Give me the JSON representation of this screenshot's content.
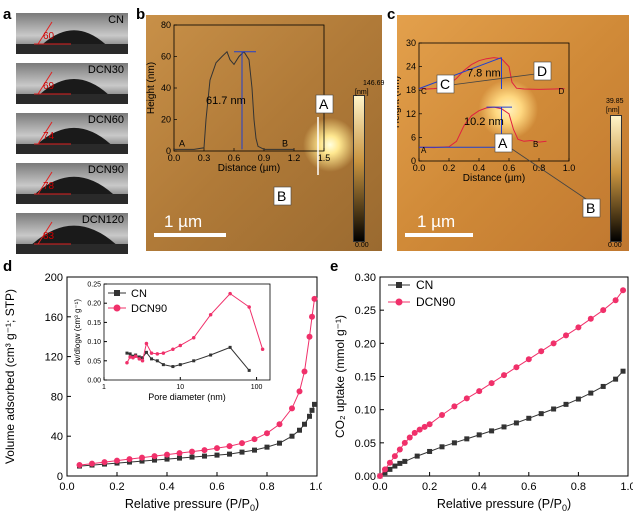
{
  "panel_labels": {
    "a": "a",
    "b": "b",
    "c": "c",
    "d": "d",
    "e": "e"
  },
  "contact_angle": {
    "samples": [
      {
        "name": "CN",
        "angle": "60"
      },
      {
        "name": "DCN30",
        "angle": "69"
      },
      {
        "name": "DCN60",
        "angle": "74"
      },
      {
        "name": "DCN90",
        "angle": "78"
      },
      {
        "name": "DCN120",
        "angle": "83"
      }
    ]
  },
  "afm_b": {
    "scale_label": "1 µm",
    "colorbar_max": "146.69",
    "colorbar_unit": "[nm]",
    "colorbar_min": "0.00",
    "marker_a": "A",
    "marker_b": "B",
    "height_label": "61.7 nm"
  },
  "afm_c": {
    "scale_label": "1 µm",
    "colorbar_max": "39.85",
    "colorbar_unit": "[nm]",
    "colorbar_min": "0.00",
    "marker_a": "A",
    "marker_b": "B",
    "marker_c": "C",
    "marker_d": "D",
    "height_label_1": "7.8 nm",
    "height_label_2": "10.2 nm"
  },
  "chart_data": [
    {
      "type": "line",
      "panel": "b-inset",
      "xlabel": "Distance (µm)",
      "ylabel": "Height (nm)",
      "xlim": [
        0,
        1.5
      ],
      "ylim": [
        0,
        80
      ],
      "xticks": [
        "0.0",
        "0.3",
        "0.6",
        "0.9",
        "1.2",
        "1.5"
      ],
      "yticks": [
        "0",
        "20",
        "40",
        "60",
        "80"
      ],
      "x": [
        0.0,
        0.1,
        0.2,
        0.3,
        0.32,
        0.36,
        0.42,
        0.48,
        0.53,
        0.56,
        0.6,
        0.65,
        0.7,
        0.75,
        0.78,
        0.8,
        0.82,
        0.84,
        0.87,
        0.9,
        1.0,
        1.1,
        1.2
      ],
      "y": [
        1,
        1,
        1,
        2,
        20,
        45,
        56,
        60,
        63,
        58,
        55,
        60,
        63,
        58,
        40,
        20,
        8,
        3,
        2,
        1,
        1,
        1,
        1
      ]
    },
    {
      "type": "line",
      "panel": "c-inset",
      "xlabel": "Distance (µm)",
      "ylabel": "Height (nm)",
      "xlim": [
        0,
        1.0
      ],
      "ylim": [
        0,
        30
      ],
      "xticks": [
        "0.0",
        "0.2",
        "0.4",
        "0.6",
        "0.8",
        "1.0"
      ],
      "yticks": [
        "0",
        "6",
        "12",
        "18",
        "24",
        "30"
      ],
      "series": [
        {
          "name": "C-D",
          "x": [
            0.0,
            0.05,
            0.1,
            0.15,
            0.2,
            0.25,
            0.3,
            0.35,
            0.4,
            0.45,
            0.5,
            0.55,
            0.6,
            0.62,
            0.65,
            0.7,
            0.8,
            0.9,
            0.97
          ],
          "values": [
            18.5,
            18.3,
            18.4,
            18.6,
            19.5,
            21,
            23,
            24.5,
            25.5,
            26,
            26.3,
            26,
            24,
            20,
            18.5,
            18.3,
            18.2,
            18.3,
            18.4
          ]
        },
        {
          "name": "A-B",
          "x": [
            0.0,
            0.1,
            0.2,
            0.25,
            0.3,
            0.35,
            0.4,
            0.45,
            0.5,
            0.55,
            0.6,
            0.63,
            0.66,
            0.7,
            0.75,
            0.8,
            0.85
          ],
          "values": [
            3.5,
            3.4,
            3.6,
            5,
            9,
            11.5,
            12.8,
            13.5,
            13.7,
            13.3,
            12,
            8,
            5.5,
            5,
            5.2,
            4.8,
            5
          ]
        }
      ]
    },
    {
      "type": "line",
      "panel": "d",
      "xlabel": "Relative pressure (P/P",
      "xlabel_sub": "0",
      "xlabel_end": ")",
      "ylabel": "Volume adsorbed (cm³ g⁻¹; STP)",
      "xlim": [
        0,
        1.0
      ],
      "ylim": [
        0,
        200
      ],
      "xticks": [
        "0.0",
        "0.2",
        "0.4",
        "0.6",
        "0.8",
        "1.0"
      ],
      "yticks": [
        "0",
        "40",
        "80",
        "120",
        "160",
        "200"
      ],
      "x": [
        0.05,
        0.1,
        0.15,
        0.2,
        0.25,
        0.3,
        0.35,
        0.4,
        0.45,
        0.5,
        0.55,
        0.6,
        0.65,
        0.7,
        0.75,
        0.8,
        0.85,
        0.9,
        0.93,
        0.95,
        0.97,
        0.98,
        0.99
      ],
      "series": [
        {
          "name": "CN",
          "values": [
            10,
            11,
            12,
            13,
            14,
            15,
            16,
            17,
            18,
            19,
            20,
            21,
            22,
            24,
            26,
            29,
            33,
            40,
            46,
            52,
            60,
            66,
            72
          ]
        },
        {
          "name": "DCN90",
          "values": [
            11,
            12.5,
            14,
            15.5,
            17,
            18.5,
            20,
            21.5,
            23,
            24.5,
            26,
            28,
            30,
            33,
            37,
            43,
            52,
            68,
            85,
            105,
            140,
            160,
            178
          ]
        }
      ]
    },
    {
      "type": "line",
      "panel": "d-inset",
      "xlabel": "Pore diameter (nm)",
      "ylabel": "dv/dlogw (cm³ g⁻¹)",
      "xscale": "log",
      "xlim": [
        1,
        150
      ],
      "ylim": [
        0,
        0.25
      ],
      "xticks": [
        "1",
        "10",
        "100"
      ],
      "yticks": [
        "0.00",
        "0.05",
        "0.10",
        "0.15",
        "0.20",
        "0.25"
      ],
      "legend_position": "top-left",
      "series": [
        {
          "name": "CN",
          "x": [
            2.0,
            2.2,
            2.4,
            2.6,
            2.9,
            3.2,
            3.6,
            4.2,
            5,
            6,
            8,
            10,
            15,
            25,
            45,
            80
          ],
          "values": [
            0.07,
            0.068,
            0.062,
            0.065,
            0.06,
            0.058,
            0.072,
            0.055,
            0.05,
            0.04,
            0.035,
            0.04,
            0.05,
            0.065,
            0.085,
            0.025
          ]
        },
        {
          "name": "DCN90",
          "x": [
            2.0,
            2.2,
            2.4,
            2.6,
            2.9,
            3.2,
            3.6,
            4.2,
            5,
            6,
            8,
            10,
            15,
            25,
            45,
            80,
            120
          ],
          "values": [
            0.045,
            0.06,
            0.058,
            0.062,
            0.055,
            0.05,
            0.095,
            0.07,
            0.068,
            0.07,
            0.08,
            0.09,
            0.11,
            0.17,
            0.225,
            0.19,
            0.08
          ]
        }
      ]
    },
    {
      "type": "line",
      "panel": "e",
      "xlabel": "Relative pressure (P/P",
      "xlabel_sub": "0",
      "xlabel_end": ")",
      "ylabel": "CO₂ uptake (mmol g⁻¹)",
      "xlim": [
        0,
        1.0
      ],
      "ylim": [
        0,
        0.3
      ],
      "xticks": [
        "0.0",
        "0.2",
        "0.4",
        "0.6",
        "0.8",
        "1.0"
      ],
      "yticks": [
        "0.00",
        "0.05",
        "0.10",
        "0.15",
        "0.20",
        "0.25",
        "0.30"
      ],
      "legend_position": "top-left",
      "series": [
        {
          "name": "CN",
          "x": [
            0.0,
            0.02,
            0.04,
            0.06,
            0.08,
            0.1,
            0.15,
            0.2,
            0.25,
            0.3,
            0.35,
            0.4,
            0.45,
            0.5,
            0.55,
            0.6,
            0.65,
            0.7,
            0.75,
            0.8,
            0.85,
            0.9,
            0.95,
            0.98
          ],
          "values": [
            0.0,
            0.005,
            0.01,
            0.015,
            0.019,
            0.022,
            0.03,
            0.037,
            0.044,
            0.05,
            0.056,
            0.062,
            0.068,
            0.074,
            0.08,
            0.087,
            0.094,
            0.101,
            0.108,
            0.116,
            0.125,
            0.135,
            0.146,
            0.158
          ]
        },
        {
          "name": "DCN90",
          "x": [
            0.0,
            0.02,
            0.04,
            0.06,
            0.08,
            0.1,
            0.12,
            0.14,
            0.16,
            0.18,
            0.2,
            0.25,
            0.3,
            0.35,
            0.4,
            0.45,
            0.5,
            0.55,
            0.6,
            0.65,
            0.7,
            0.75,
            0.8,
            0.85,
            0.9,
            0.95,
            0.98
          ],
          "values": [
            0.0,
            0.01,
            0.02,
            0.03,
            0.04,
            0.05,
            0.058,
            0.065,
            0.07,
            0.074,
            0.078,
            0.092,
            0.105,
            0.117,
            0.128,
            0.14,
            0.152,
            0.164,
            0.176,
            0.188,
            0.2,
            0.212,
            0.224,
            0.237,
            0.25,
            0.265,
            0.28
          ]
        }
      ]
    }
  ]
}
